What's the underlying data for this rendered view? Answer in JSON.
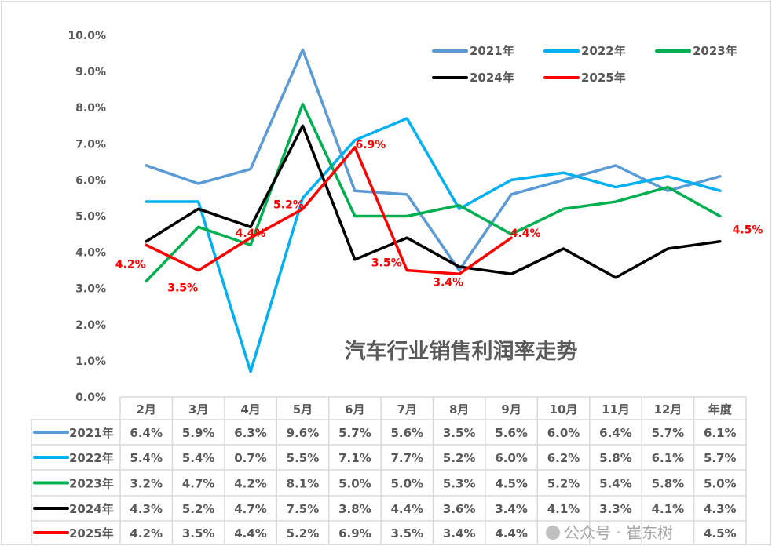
{
  "chart_data": {
    "type": "line",
    "title": "汽车行业销售利润率走势",
    "categories": [
      "2月",
      "3月",
      "4月",
      "5月",
      "6月",
      "7月",
      "8月",
      "9月",
      "10月",
      "11月",
      "12月",
      "年度"
    ],
    "yticks": [
      "0.0%",
      "1.0%",
      "2.0%",
      "3.0%",
      "4.0%",
      "5.0%",
      "6.0%",
      "7.0%",
      "8.0%",
      "9.0%",
      "10.0%"
    ],
    "ylim": [
      0,
      10
    ],
    "unit": "%",
    "grid": false,
    "legend_placement": "top-right",
    "series": [
      {
        "name": "2021年",
        "color": "#5B9BD5",
        "values": [
          6.4,
          5.9,
          6.3,
          9.6,
          5.7,
          5.6,
          3.5,
          5.6,
          6.0,
          6.4,
          5.7,
          6.1
        ],
        "labels": [
          "6.4%",
          "5.9%",
          "6.3%",
          "9.6%",
          "5.7%",
          "5.6%",
          "3.5%",
          "5.6%",
          "6.0%",
          "6.4%",
          "5.7%",
          "6.1%"
        ]
      },
      {
        "name": "2022年",
        "color": "#00B0F0",
        "values": [
          5.4,
          5.4,
          0.7,
          5.5,
          7.1,
          7.7,
          5.2,
          6.0,
          6.2,
          5.8,
          6.1,
          5.7
        ],
        "labels": [
          "5.4%",
          "5.4%",
          "0.7%",
          "5.5%",
          "7.1%",
          "7.7%",
          "5.2%",
          "6.0%",
          "6.2%",
          "5.8%",
          "6.1%",
          "5.7%"
        ]
      },
      {
        "name": "2023年",
        "color": "#00B050",
        "values": [
          3.2,
          4.7,
          4.2,
          8.1,
          5.0,
          5.0,
          5.3,
          4.5,
          5.2,
          5.4,
          5.8,
          5.0
        ],
        "labels": [
          "3.2%",
          "4.7%",
          "4.2%",
          "8.1%",
          "5.0%",
          "5.0%",
          "5.3%",
          "4.5%",
          "5.2%",
          "5.4%",
          "5.8%",
          "5.0%"
        ]
      },
      {
        "name": "2024年",
        "color": "#000000",
        "values": [
          4.3,
          5.2,
          4.7,
          7.5,
          3.8,
          4.4,
          3.6,
          3.4,
          4.1,
          3.3,
          4.1,
          4.3
        ],
        "labels": [
          "4.3%",
          "5.2%",
          "4.7%",
          "7.5%",
          "3.8%",
          "4.4%",
          "3.6%",
          "3.4%",
          "4.1%",
          "3.3%",
          "4.1%",
          "4.3%"
        ]
      },
      {
        "name": "2025年",
        "color": "#FF0000",
        "values": [
          4.2,
          3.5,
          4.4,
          5.2,
          6.9,
          3.5,
          3.4,
          4.4,
          null,
          null,
          null,
          4.5
        ],
        "labels": [
          "4.2%",
          "3.5%",
          "4.4%",
          "5.2%",
          "6.9%",
          "3.5%",
          "3.4%",
          "4.4%",
          "",
          "",
          "",
          "4.5%"
        ]
      }
    ]
  },
  "watermark": "公众号 · 崔东树"
}
